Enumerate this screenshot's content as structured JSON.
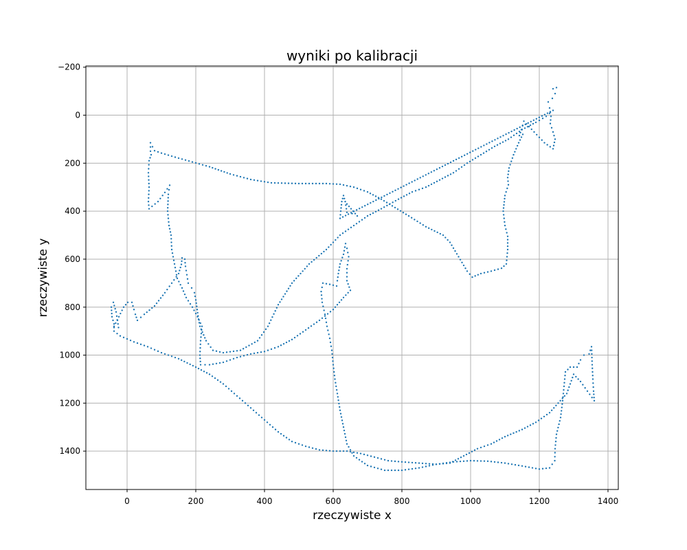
{
  "chart_data": {
    "type": "scatter",
    "title": "wyniki po kalibracji",
    "xlabel": "rzeczywiste x",
    "ylabel": "rzeczywiste y",
    "xlim": [
      -120,
      1430
    ],
    "ylim": [
      1560,
      -205
    ],
    "y_inverted": true,
    "grid": true,
    "xticks": [
      0,
      200,
      400,
      600,
      800,
      1000,
      1200,
      1400
    ],
    "xtick_labels": [
      "0",
      "200",
      "400",
      "600",
      "800",
      "1000",
      "1200",
      "1400"
    ],
    "yticks": [
      -200,
      0,
      200,
      400,
      600,
      800,
      1000,
      1200,
      1400
    ],
    "ytick_labels": [
      "−200",
      "0",
      "200",
      "400",
      "600",
      "800",
      "1000",
      "1200",
      "1400"
    ],
    "marker_color": "#1f77b4",
    "series": [
      {
        "points": [
          [
            1240,
            -110
          ],
          [
            1250,
            -115
          ],
          [
            1246,
            -90
          ],
          [
            1238,
            -70
          ],
          [
            1226,
            -55
          ],
          [
            1230,
            -30
          ],
          [
            1234,
            5
          ],
          [
            1232,
            35
          ],
          [
            1240,
            70
          ],
          [
            1246,
            100
          ],
          [
            1240,
            140
          ],
          [
            1215,
            115
          ],
          [
            1185,
            70
          ],
          [
            1155,
            25
          ],
          [
            1148,
            60
          ],
          [
            1142,
            85
          ],
          [
            1152,
            80
          ],
          [
            1140,
            115
          ],
          [
            1125,
            165
          ],
          [
            1112,
            220
          ],
          [
            1108,
            260
          ],
          [
            1110,
            290
          ],
          [
            1100,
            335
          ],
          [
            1095,
            400
          ],
          [
            1100,
            460
          ],
          [
            1108,
            505
          ],
          [
            1108,
            560
          ],
          [
            1104,
            620
          ],
          [
            1090,
            638
          ],
          [
            1060,
            650
          ],
          [
            1030,
            660
          ],
          [
            1005,
            675
          ],
          [
            990,
            650
          ],
          [
            965,
            590
          ],
          [
            940,
            530
          ],
          [
            920,
            500
          ],
          [
            870,
            465
          ],
          [
            820,
            420
          ],
          [
            780,
            385
          ],
          [
            740,
            350
          ],
          [
            700,
            320
          ],
          [
            660,
            300
          ],
          [
            620,
            288
          ],
          [
            580,
            285
          ],
          [
            500,
            285
          ],
          [
            420,
            282
          ],
          [
            360,
            268
          ],
          [
            300,
            245
          ],
          [
            240,
            215
          ],
          [
            190,
            195
          ],
          [
            140,
            175
          ],
          [
            100,
            158
          ],
          [
            80,
            148
          ],
          [
            68,
            115
          ],
          [
            68,
            150
          ],
          [
            70,
            165
          ],
          [
            64,
            190
          ],
          [
            62,
            240
          ],
          [
            64,
            300
          ],
          [
            62,
            360
          ],
          [
            64,
            390
          ],
          [
            90,
            360
          ],
          [
            110,
            322
          ],
          [
            124,
            292
          ],
          [
            120,
            330
          ],
          [
            118,
            400
          ],
          [
            122,
            460
          ],
          [
            128,
            500
          ],
          [
            130,
            560
          ],
          [
            138,
            620
          ],
          [
            146,
            680
          ],
          [
            160,
            720
          ],
          [
            172,
            760
          ],
          [
            190,
            800
          ],
          [
            205,
            840
          ],
          [
            218,
            880
          ],
          [
            214,
            940
          ],
          [
            212,
            1000
          ],
          [
            214,
            1040
          ],
          [
            240,
            1040
          ],
          [
            280,
            1030
          ],
          [
            320,
            1010
          ],
          [
            360,
            995
          ],
          [
            400,
            985
          ],
          [
            440,
            965
          ],
          [
            480,
            935
          ],
          [
            520,
            895
          ],
          [
            560,
            855
          ],
          [
            600,
            810
          ],
          [
            630,
            760
          ],
          [
            650,
            730
          ],
          [
            640,
            690
          ],
          [
            640,
            640
          ],
          [
            645,
            590
          ],
          [
            640,
            555
          ],
          [
            636,
            535
          ],
          [
            630,
            580
          ],
          [
            620,
            620
          ],
          [
            615,
            660
          ],
          [
            612,
            690
          ],
          [
            610,
            712
          ],
          [
            590,
            705
          ],
          [
            570,
            700
          ],
          [
            565,
            735
          ],
          [
            568,
            780
          ],
          [
            576,
            830
          ],
          [
            582,
            880
          ],
          [
            590,
            930
          ],
          [
            596,
            980
          ],
          [
            600,
            1040
          ],
          [
            605,
            1100
          ],
          [
            612,
            1160
          ],
          [
            620,
            1230
          ],
          [
            630,
            1300
          ],
          [
            640,
            1370
          ],
          [
            660,
            1420
          ],
          [
            700,
            1460
          ],
          [
            750,
            1480
          ],
          [
            800,
            1480
          ],
          [
            850,
            1470
          ],
          [
            900,
            1455
          ],
          [
            950,
            1445
          ],
          [
            1000,
            1440
          ],
          [
            1050,
            1442
          ],
          [
            1100,
            1450
          ],
          [
            1150,
            1462
          ],
          [
            1200,
            1475
          ],
          [
            1230,
            1470
          ],
          [
            1245,
            1440
          ],
          [
            1246,
            1390
          ],
          [
            1250,
            1330
          ],
          [
            1262,
            1260
          ],
          [
            1268,
            1190
          ],
          [
            1272,
            1130
          ],
          [
            1276,
            1070
          ],
          [
            1290,
            1050
          ],
          [
            1310,
            1050
          ],
          [
            1320,
            1020
          ],
          [
            1330,
            1000
          ],
          [
            1345,
            995
          ],
          [
            1352,
            965
          ],
          [
            1354,
            1040
          ],
          [
            1356,
            1100
          ],
          [
            1358,
            1150
          ],
          [
            1360,
            1190
          ],
          [
            1340,
            1150
          ],
          [
            1320,
            1110
          ],
          [
            1300,
            1080
          ],
          [
            1280,
            1160
          ],
          [
            1255,
            1200
          ],
          [
            1230,
            1240
          ],
          [
            1190,
            1280
          ],
          [
            1150,
            1310
          ],
          [
            1100,
            1340
          ],
          [
            1060,
            1370
          ],
          [
            1020,
            1390
          ],
          [
            980,
            1420
          ],
          [
            940,
            1450
          ],
          [
            900,
            1455
          ],
          [
            850,
            1450
          ],
          [
            800,
            1445
          ],
          [
            760,
            1440
          ],
          [
            720,
            1425
          ],
          [
            680,
            1410
          ],
          [
            640,
            1400
          ],
          [
            600,
            1400
          ],
          [
            560,
            1395
          ],
          [
            520,
            1380
          ],
          [
            480,
            1360
          ],
          [
            440,
            1320
          ],
          [
            400,
            1270
          ],
          [
            360,
            1220
          ],
          [
            320,
            1170
          ],
          [
            280,
            1120
          ],
          [
            240,
            1080
          ],
          [
            200,
            1050
          ],
          [
            150,
            1015
          ],
          [
            100,
            990
          ],
          [
            60,
            965
          ],
          [
            20,
            945
          ],
          [
            -20,
            920
          ],
          [
            -38,
            900
          ],
          [
            -38,
            870
          ],
          [
            -44,
            840
          ],
          [
            -46,
            800
          ],
          [
            -40,
            780
          ],
          [
            -32,
            820
          ],
          [
            -28,
            855
          ],
          [
            -25,
            885
          ],
          [
            -38,
            880
          ],
          [
            -10,
            800
          ],
          [
            2,
            780
          ],
          [
            14,
            780
          ],
          [
            20,
            810
          ],
          [
            24,
            830
          ],
          [
            30,
            855
          ],
          [
            50,
            830
          ],
          [
            80,
            795
          ],
          [
            110,
            740
          ],
          [
            130,
            700
          ],
          [
            150,
            660
          ],
          [
            158,
            622
          ],
          [
            160,
            595
          ],
          [
            168,
            600
          ],
          [
            170,
            630
          ],
          [
            174,
            665
          ],
          [
            178,
            700
          ],
          [
            188,
            720
          ],
          [
            196,
            740
          ],
          [
            200,
            770
          ],
          [
            204,
            810
          ],
          [
            208,
            850
          ],
          [
            212,
            880
          ],
          [
            230,
            940
          ],
          [
            250,
            980
          ],
          [
            280,
            990
          ],
          [
            330,
            980
          ],
          [
            380,
            940
          ],
          [
            410,
            880
          ],
          [
            440,
            790
          ],
          [
            480,
            700
          ],
          [
            530,
            620
          ],
          [
            580,
            560
          ],
          [
            620,
            500
          ],
          [
            660,
            460
          ],
          [
            700,
            420
          ],
          [
            740,
            390
          ],
          [
            790,
            350
          ],
          [
            830,
            320
          ],
          [
            870,
            300
          ],
          [
            910,
            270
          ],
          [
            950,
            240
          ],
          [
            990,
            200
          ],
          [
            1030,
            165
          ],
          [
            1070,
            130
          ],
          [
            1110,
            100
          ],
          [
            1150,
            60
          ],
          [
            1190,
            30
          ],
          [
            1220,
            5
          ],
          [
            1240,
            -20
          ],
          [
            620,
            430
          ],
          [
            622,
            400
          ],
          [
            625,
            360
          ],
          [
            630,
            335
          ],
          [
            635,
            360
          ],
          [
            640,
            405
          ],
          [
            655,
            410
          ],
          [
            670,
            420
          ],
          [
            640,
            370
          ]
        ]
      }
    ]
  }
}
